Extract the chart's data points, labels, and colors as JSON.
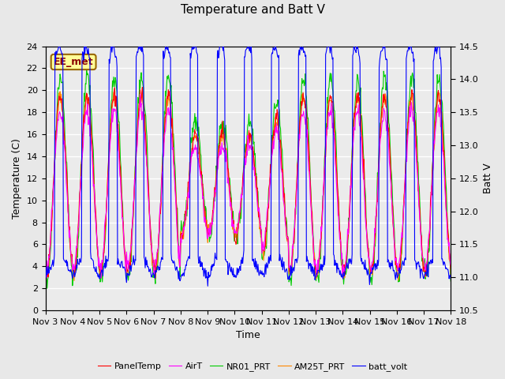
{
  "title": "Temperature and Batt V",
  "xlabel": "Time",
  "ylabel_left": "Temperature (C)",
  "ylabel_right": "Batt V",
  "annotation": "EE_met",
  "x_tick_labels": [
    "Nov 3",
    "Nov 4",
    "Nov 5",
    "Nov 6",
    "Nov 7",
    "Nov 8",
    "Nov 9",
    "Nov 10",
    "Nov 11",
    "Nov 12",
    "Nov 13",
    "Nov 14",
    "Nov 15",
    "Nov 16",
    "Nov 17",
    "Nov 18"
  ],
  "ylim_left": [
    0,
    24
  ],
  "ylim_right": [
    10.5,
    14.5
  ],
  "yticks_left": [
    0,
    2,
    4,
    6,
    8,
    10,
    12,
    14,
    16,
    18,
    20,
    22,
    24
  ],
  "yticks_right": [
    10.5,
    11.0,
    11.5,
    12.0,
    12.5,
    13.0,
    13.5,
    14.0,
    14.5
  ],
  "series_colors": {
    "PanelTemp": "#ff0000",
    "AirT": "#ff00ff",
    "NR01_PRT": "#00cc00",
    "AM25T_PRT": "#ff8800",
    "batt_volt": "#0000ff"
  },
  "legend_labels": [
    "PanelTemp",
    "AirT",
    "NR01_PRT",
    "AM25T_PRT",
    "batt_volt"
  ],
  "bg_color": "#e8e8e8",
  "plot_bg_color": "#ebebeb",
  "title_fontsize": 11,
  "label_fontsize": 9,
  "tick_fontsize": 8,
  "annotation_fontsize": 9,
  "lw": 0.8
}
